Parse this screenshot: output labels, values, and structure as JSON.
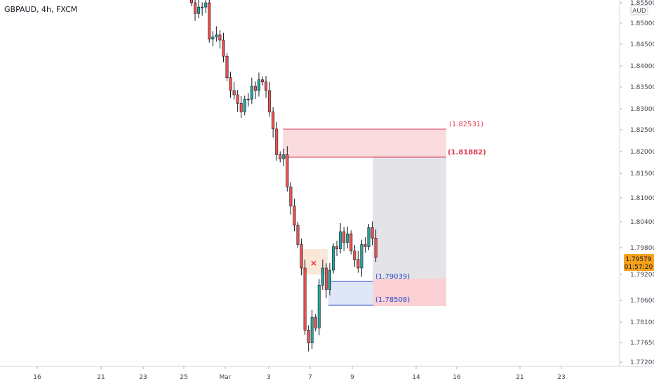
{
  "header": {
    "title": "GBPAUD, 4h, FXCM"
  },
  "colors": {
    "up": "#26a69a",
    "down": "#ef5350",
    "wick": "#131722",
    "sell_zone_fill": "#f9d6d9",
    "sell_zone_line": "#e0394f",
    "buy_zone_fill": "#dbe3f7",
    "buy_zone_line": "#2c4bc7",
    "target_fill": "#e1e1e6",
    "stop_fill": "#f9cbcf",
    "entry_fill": "#fbe4d3",
    "price_badge": "#f7a21b"
  },
  "price_axis": {
    "currency": "AUD",
    "labels": [
      "1.85500",
      "1.85000",
      "1.84500",
      "1.84000",
      "1.83500",
      "1.83000",
      "1.82500",
      "1.82000",
      "1.81500",
      "1.81000",
      "1.80400",
      "1.79800",
      "1.79200",
      "1.78600",
      "1.78100",
      "1.77650",
      "1.77200"
    ],
    "current_price": "1.79579",
    "countdown": "01:57:20"
  },
  "time_axis": {
    "labels": [
      "16",
      "21",
      "23",
      "25",
      "Mar",
      "3",
      "7",
      "9",
      "14",
      "16",
      "21",
      "23"
    ]
  },
  "chart_data": {
    "type": "candlestick",
    "title": "GBPAUD, 4h, FXCM",
    "ylim": [
      1.7705,
      1.856
    ],
    "candles_close": [
      1.8555,
      1.853,
      1.8545,
      1.8545,
      1.8555,
      1.847,
      1.8475,
      1.848,
      1.8468,
      1.843,
      1.838,
      1.835,
      1.834,
      1.832,
      1.83,
      1.833,
      1.833,
      1.836,
      1.835,
      1.8375,
      1.837,
      1.835,
      1.83,
      1.826,
      1.82,
      1.819,
      1.82,
      1.8125,
      1.808,
      1.8035,
      1.799,
      1.7935,
      1.779,
      1.776,
      1.782,
      1.7795,
      1.7895,
      1.7935,
      1.7885,
      1.793,
      1.7985,
      1.798,
      1.802,
      1.7995,
      1.8015,
      1.7975,
      1.7955,
      1.7935,
      1.799,
      1.7985,
      1.803,
      1.8005,
      1.796
    ],
    "zones": [
      {
        "name": "sell zone",
        "top": "1.82531",
        "bottom": "1.81882"
      },
      {
        "name": "buy zone",
        "top": "1.79039",
        "bottom": "1.78508"
      }
    ],
    "markers": [
      "✕"
    ]
  }
}
